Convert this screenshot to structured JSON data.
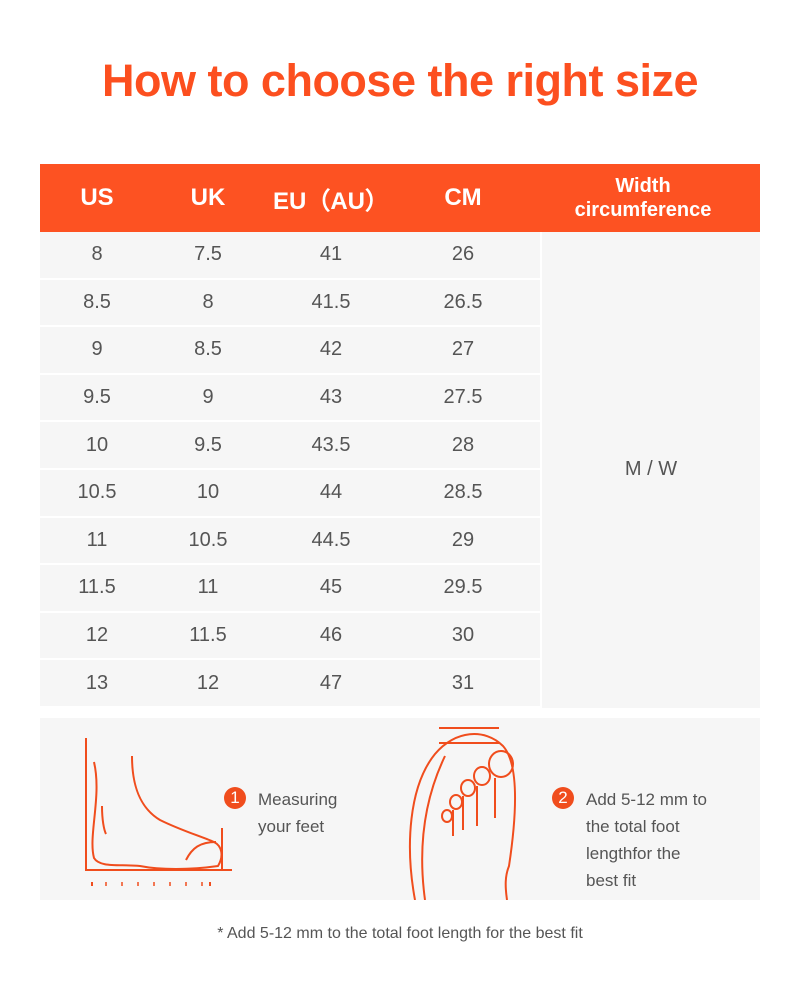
{
  "title": "How to choose the right size",
  "table": {
    "headers": [
      "US",
      "UK",
      "EU（AU）",
      "CM",
      "Width circumference"
    ],
    "header_width_line1": "Width",
    "header_width_line2": "circumference",
    "rows": [
      [
        "8",
        "7.5",
        "41",
        "26"
      ],
      [
        "8.5",
        "8",
        "41.5",
        "26.5"
      ],
      [
        "9",
        "8.5",
        "42",
        "27"
      ],
      [
        "9.5",
        "9",
        "43",
        "27.5"
      ],
      [
        "10",
        "9.5",
        "43.5",
        "28"
      ],
      [
        "10.5",
        "10",
        "44",
        "28.5"
      ],
      [
        "11",
        "10.5",
        "44.5",
        "29"
      ],
      [
        "11.5",
        "11",
        "45",
        "29.5"
      ],
      [
        "12",
        "11.5",
        "46",
        "30"
      ],
      [
        "13",
        "12",
        "47",
        "31"
      ]
    ],
    "width_value": "M / W"
  },
  "steps": [
    {
      "num": "1",
      "line1": "Measuring",
      "line2": "your feet"
    },
    {
      "num": "2",
      "line1": "Add 5-12 mm to",
      "line2": "the total foot",
      "line3": "lengthfor the",
      "line4": "best fit"
    }
  ],
  "footnote": "* Add 5-12 mm to the total foot length for the best fit",
  "colors": {
    "accent": "#fd5222",
    "cell_bg": "#f6f6f6",
    "text": "#555555"
  }
}
